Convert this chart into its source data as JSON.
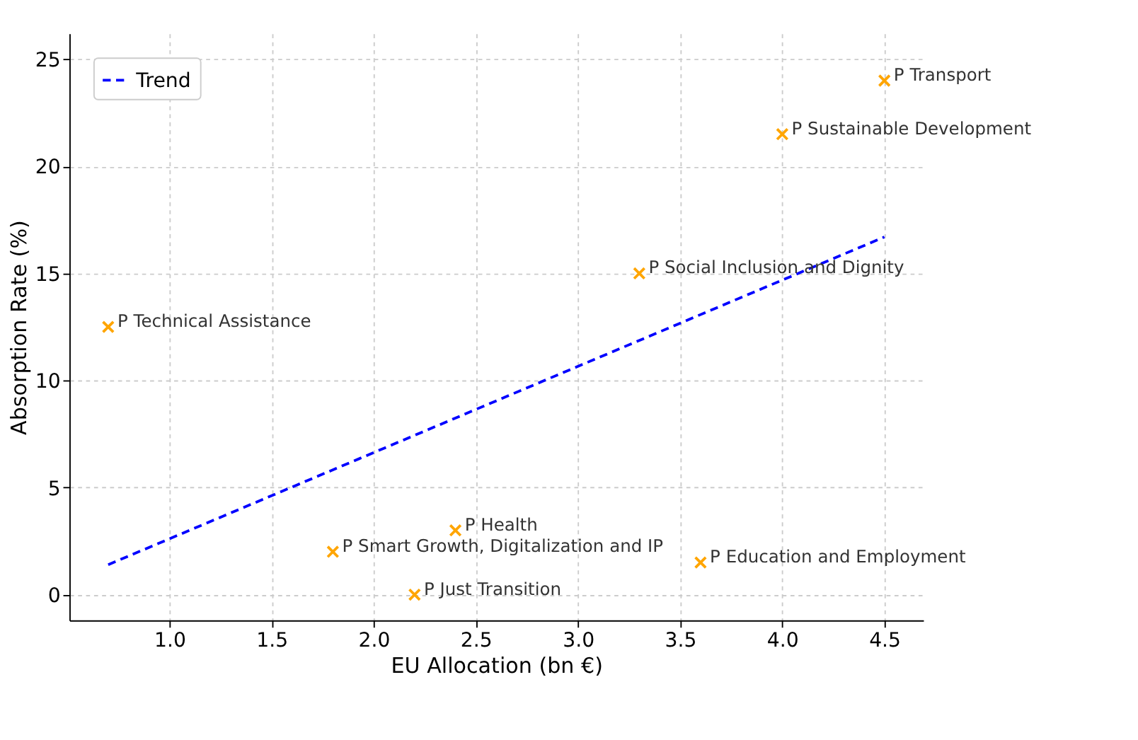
{
  "chart_data": {
    "type": "scatter",
    "xlabel": "EU Allocation (bn €)",
    "ylabel": "Absorption Rate (%)",
    "xlim": [
      0.51,
      4.69
    ],
    "ylim": [
      -1.2,
      26.2
    ],
    "xticks": [
      {
        "value": 1,
        "label": "1.0"
      },
      1.5,
      {
        "value": 2,
        "label": "2.0"
      },
      2.5,
      {
        "value": 3,
        "label": "3.0"
      },
      3.5,
      {
        "value": 4,
        "label": "4.0"
      },
      4.5
    ],
    "yticks": [
      0,
      5,
      10,
      15,
      20,
      25
    ],
    "grid": true,
    "legend": "top left",
    "marker": "cross",
    "series": [
      {
        "color": "#ffa500",
        "x": [
          4.5,
          4.0,
          3.3,
          0.7,
          2.4,
          1.8,
          2.2,
          3.6
        ],
        "values": [
          24,
          21.5,
          15,
          12.5,
          3,
          2,
          0,
          1.5
        ]
      },
      {
        "type": "line",
        "name": "Trend",
        "color": "#0000ff",
        "line_style": "dashed",
        "marker": "none",
        "x": [
          0.7,
          4.5
        ],
        "values": [
          1.4,
          16.7
        ]
      }
    ],
    "annotations": [
      {
        "text": "P Transport",
        "x": 4.5,
        "y": 24
      },
      {
        "text": "P Sustainable Development",
        "x": 4.0,
        "y": 21.5
      },
      {
        "text": "P Social Inclusion and Dignity",
        "x": 3.3,
        "y": 15
      },
      {
        "text": "P Technical Assistance",
        "x": 0.7,
        "y": 12.5
      },
      {
        "text": "P Health",
        "x": 2.4,
        "y": 3
      },
      {
        "text": "P Smart Growth, Digitalization and IP",
        "x": 1.8,
        "y": 2
      },
      {
        "text": "P Just Transition",
        "x": 2.2,
        "y": 0
      },
      {
        "text": "P Education and Employment",
        "x": 3.6,
        "y": 1.5
      }
    ]
  }
}
